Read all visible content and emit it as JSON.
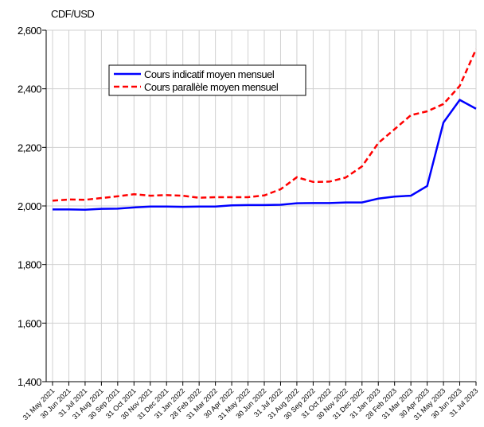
{
  "chart_data": {
    "type": "line",
    "y_label": "CDF/USD",
    "categories": [
      "31 May 2021",
      "30 Jun 2021",
      "31 Jul 2021",
      "31 Aug 2021",
      "30 Sep 2021",
      "31 Oct 2021",
      "30 Nov 2021",
      "31 Dec 2021",
      "31 Jan 2022",
      "28 Feb 2022",
      "31 Mar 2022",
      "30 Apr 2022",
      "31 May 2022",
      "30 Jun 2022",
      "31 Jul 2022",
      "31 Aug 2022",
      "30 Sep 2022",
      "31 Oct 2022",
      "30 Nov 2022",
      "31 Dec 2022",
      "31 Jan 2023",
      "28 Feb 2023",
      "31 Mar 2023",
      "30 Apr 2023",
      "31 May 2023",
      "30 Jun 2023",
      "31 Jul 2023"
    ],
    "series": [
      {
        "name": "Cours indicatif moyen mensuel",
        "color": "#0000ff",
        "dash": false,
        "values": [
          1988,
          1988,
          1987,
          1990,
          1991,
          1995,
          1998,
          1998,
          1997,
          1998,
          1998,
          2002,
          2003,
          2003,
          2004,
          2009,
          2010,
          2010,
          2012,
          2012,
          2025,
          2032,
          2035,
          2068,
          2285,
          2362,
          2332
        ]
      },
      {
        "name": "Cours parallèle moyen mensuel",
        "color": "#ff0000",
        "dash": true,
        "values": [
          2018,
          2022,
          2021,
          2027,
          2033,
          2040,
          2035,
          2037,
          2035,
          2028,
          2030,
          2030,
          2030,
          2036,
          2057,
          2098,
          2082,
          2083,
          2097,
          2135,
          2215,
          2262,
          2310,
          2323,
          2348,
          2410,
          2535
        ]
      }
    ],
    "ylim": [
      1400,
      2600
    ],
    "yticks": [
      {
        "value": 1400,
        "label": "1,400"
      },
      {
        "value": 1600,
        "label": "1,600"
      },
      {
        "value": 1800,
        "label": "1,800"
      },
      {
        "value": 2000,
        "label": "2,000"
      },
      {
        "value": 2200,
        "label": "2,200"
      },
      {
        "value": 2400,
        "label": "2,400"
      },
      {
        "value": 2600,
        "label": "2,600"
      }
    ],
    "grid": true,
    "legend": "top-left"
  }
}
